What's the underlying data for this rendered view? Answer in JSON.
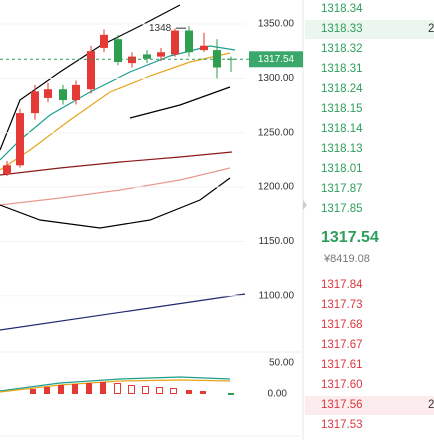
{
  "chart": {
    "price_axis": [
      {
        "value": 1350,
        "label": "1350.00"
      },
      {
        "value": 1300,
        "label": "1300.00"
      },
      {
        "value": 1250,
        "label": "1250.00"
      },
      {
        "value": 1200,
        "label": "1200.00"
      },
      {
        "value": 1150,
        "label": "1150.00"
      },
      {
        "value": 1100,
        "label": "1100.00"
      }
    ],
    "current_price": 1317.54,
    "high_marker": {
      "value": 1348,
      "label": "1348"
    },
    "indicator_axis": [
      "50.00",
      "0.00"
    ],
    "candles": [
      {
        "open": 1212,
        "close": 1220,
        "high": 1224,
        "low": 1210
      },
      {
        "open": 1220,
        "close": 1268,
        "high": 1272,
        "low": 1218
      },
      {
        "open": 1268,
        "close": 1288,
        "high": 1294,
        "low": 1262
      },
      {
        "open": 1282,
        "close": 1290,
        "high": 1296,
        "low": 1278
      },
      {
        "open": 1290,
        "close": 1280,
        "high": 1294,
        "low": 1276
      },
      {
        "open": 1280,
        "close": 1294,
        "high": 1298,
        "low": 1276
      },
      {
        "open": 1290,
        "close": 1325,
        "high": 1330,
        "low": 1286
      },
      {
        "open": 1328,
        "close": 1340,
        "high": 1345,
        "low": 1324
      },
      {
        "open": 1336,
        "close": 1315,
        "high": 1340,
        "low": 1312
      },
      {
        "open": 1314,
        "close": 1320,
        "high": 1324,
        "low": 1310
      },
      {
        "open": 1322,
        "close": 1318,
        "high": 1326,
        "low": 1314
      },
      {
        "open": 1320,
        "close": 1324,
        "high": 1328,
        "low": 1316
      },
      {
        "open": 1322,
        "close": 1344,
        "high": 1346,
        "low": 1320
      },
      {
        "open": 1344,
        "close": 1324,
        "high": 1348,
        "low": 1320
      },
      {
        "open": 1326,
        "close": 1330,
        "high": 1342,
        "low": 1324
      },
      {
        "open": 1326,
        "close": 1310,
        "high": 1336,
        "low": 1300
      },
      {
        "open": 1318,
        "close": 1317.54,
        "high": 1320,
        "low": 1306
      }
    ]
  },
  "order_book": {
    "asks": [
      {
        "price": "1318.34"
      },
      {
        "price": "1318.33",
        "volume": "2"
      },
      {
        "price": "1318.32"
      },
      {
        "price": "1318.31"
      },
      {
        "price": "1318.24"
      },
      {
        "price": "1318.15"
      },
      {
        "price": "1318.14"
      },
      {
        "price": "1318.13"
      },
      {
        "price": "1318.01"
      },
      {
        "price": "1317.87"
      },
      {
        "price": "1317.85"
      }
    ],
    "last_price": "1317.54",
    "last_price_cny": "¥8419.08",
    "bids": [
      {
        "price": "1317.84"
      },
      {
        "price": "1317.73"
      },
      {
        "price": "1317.68"
      },
      {
        "price": "1317.67"
      },
      {
        "price": "1317.61"
      },
      {
        "price": "1317.60"
      },
      {
        "price": "1317.56",
        "volume": "2"
      },
      {
        "price": "1317.53"
      }
    ]
  }
}
